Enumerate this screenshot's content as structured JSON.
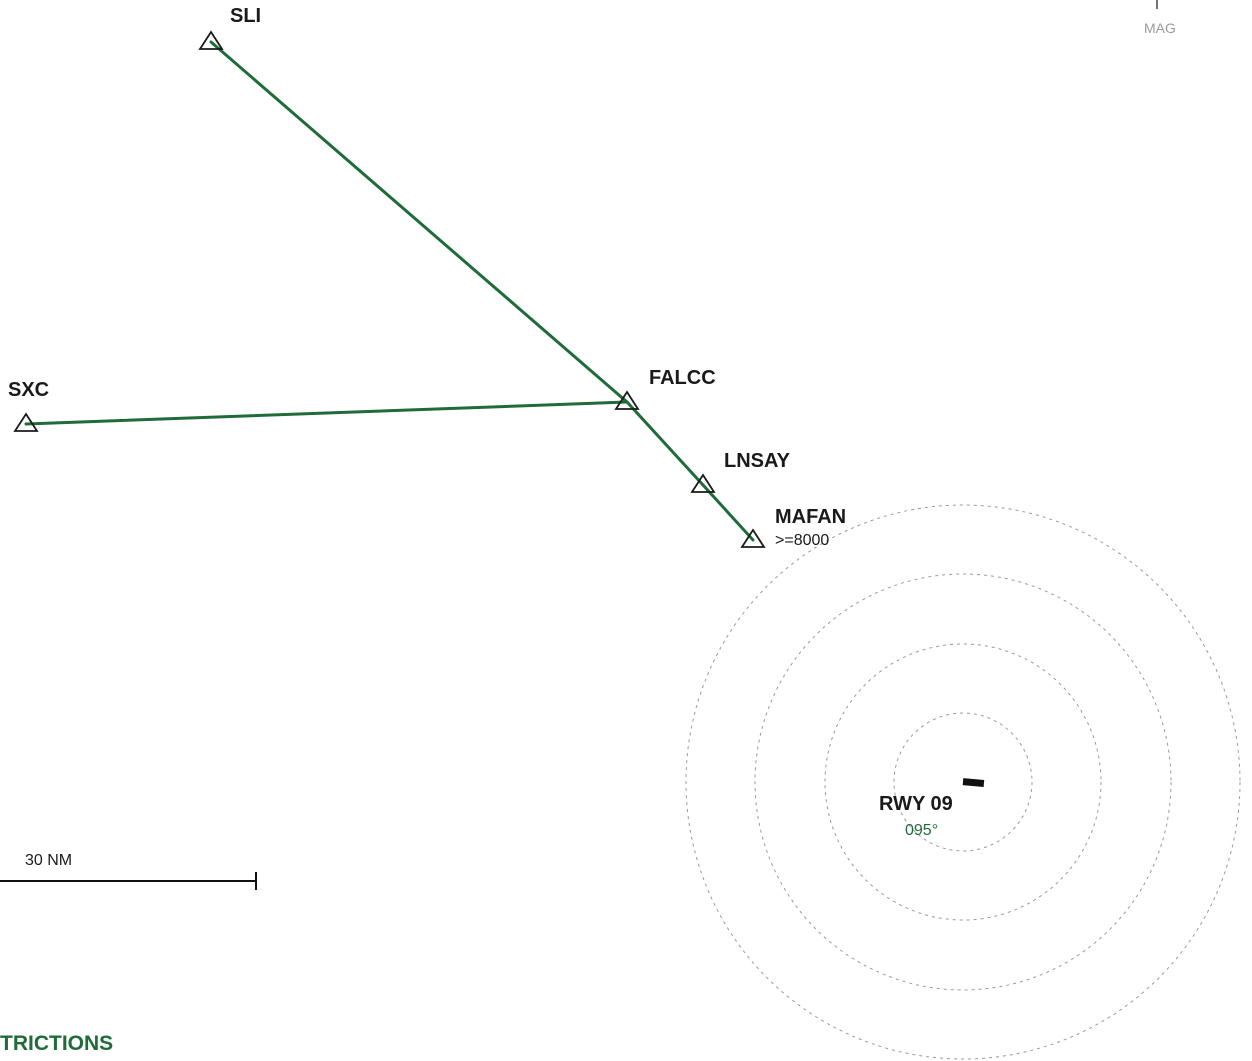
{
  "colors": {
    "route": "#1f6b3a",
    "waypoint": "#1a1a1a",
    "ring": "#9a9a9a",
    "heading": "#1f6b3a",
    "section": "#1f6b3a"
  },
  "waypoints": {
    "sli": {
      "name": "SLI"
    },
    "sxc": {
      "name": "SXC"
    },
    "falcc": {
      "name": "FALCC"
    },
    "lnsay": {
      "name": "LNSAY"
    },
    "mafan": {
      "name": "MAFAN",
      "altitude": ">=8000"
    }
  },
  "runway": {
    "label": "RWY 09",
    "heading": "095°"
  },
  "scale": {
    "label": "30 NM"
  },
  "north": {
    "label": "MAG"
  },
  "section": {
    "title": "TRICTIONS"
  }
}
